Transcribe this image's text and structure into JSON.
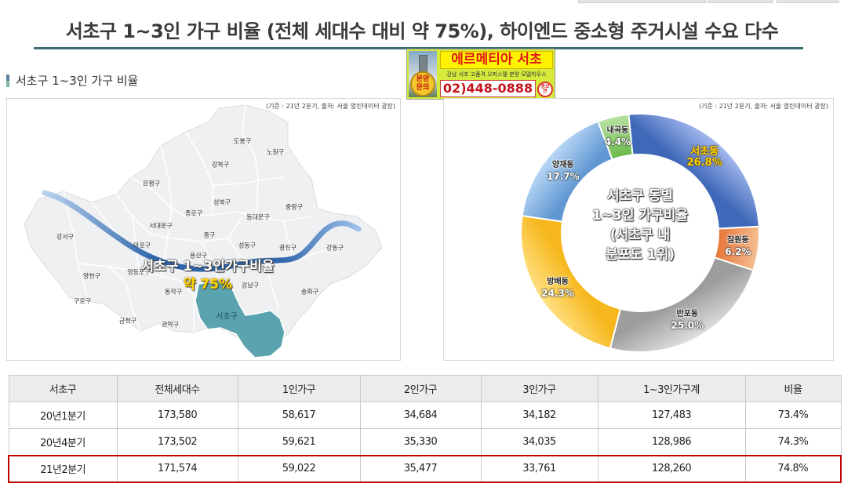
{
  "title": "서초구 1~3인 가구 비율 (전체 세대수 대비 약 75%), 하이엔드 중소형 주거시설 수요 다수",
  "section_label": "서초구 1~3인 가구 비율",
  "ad": {
    "brand": "에르메티아 서초",
    "badge_top": "분양",
    "badge_bottom": "문의",
    "subtitle": "강남 서초 고품격 오피스텔 분양 모델하우스",
    "phone": "02)448-0888",
    "stamp_top": "홍보",
    "stamp_bottom": "관"
  },
  "map_panel": {
    "source": "(기준 : 21년 2분기, 출처: 서울 열린데이터 광장)",
    "districts": [
      "도봉구",
      "노원구",
      "강북구",
      "은평구",
      "성북구",
      "중랑구",
      "종로구",
      "동대문구",
      "서대문구",
      "강서구",
      "중구",
      "마포구",
      "성동구",
      "광진구",
      "강동구",
      "용산구",
      "양천구",
      "영등포구",
      "동작구",
      "강남구",
      "송파구",
      "구로구",
      "금천구",
      "관악구",
      "서초구"
    ],
    "highlight_line1": "서초구 1~3인가구비율",
    "highlight_line2": "약 75%",
    "colors": {
      "seocho": "#5ba3ae",
      "land": "#eef0f1",
      "border": "#ffffff",
      "river": "#2f66ac"
    }
  },
  "chart_data": {
    "type": "pie",
    "source": "(기준 : 21년 2분기, 출처: 서울 열린데이터 광장)",
    "center_lines": [
      "서초구 동별",
      "1~3인 가구비율",
      "(서초구 내",
      "분포도 1위)"
    ],
    "labels": [
      "서초동",
      "잠원동",
      "반포동",
      "방배동",
      "양재동",
      "내곡동"
    ],
    "values": [
      26.8,
      6.2,
      25.0,
      24.3,
      17.7,
      4.4
    ],
    "value_labels": [
      "26.8%",
      "6.2%",
      "25.0%",
      "24.3%",
      "17.7%",
      "4.4%"
    ],
    "colors": [
      [
        "#3f69b8",
        "#a6baf0"
      ],
      [
        "#e8773a",
        "#f6bf92"
      ],
      [
        "#9d9d9d",
        "#dedede"
      ],
      [
        "#f6b71c",
        "#ffe184"
      ],
      [
        "#5f97d2",
        "#bad8f6"
      ],
      [
        "#6ab84b",
        "#b9e3a2"
      ]
    ],
    "start_angle_deg": -5.5,
    "highlight_index": 0
  },
  "table": {
    "headers": [
      "서초구",
      "전체세대수",
      "1인가구",
      "2인가구",
      "3인가구",
      "1~3인가구계",
      "비율"
    ],
    "rows": [
      [
        "20년1분기",
        "173,580",
        "58,617",
        "34,684",
        "34,182",
        "127,483",
        "73.4%"
      ],
      [
        "20년4분기",
        "173,502",
        "59,621",
        "35,330",
        "34,035",
        "128,986",
        "74.3%"
      ],
      [
        "21년2분기",
        "171,574",
        "59,022",
        "35,477",
        "33,761",
        "128,260",
        "74.8%"
      ]
    ],
    "highlight_row": 2,
    "highlight_color": "#c00000"
  }
}
